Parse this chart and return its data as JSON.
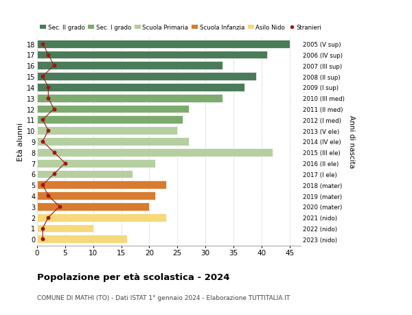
{
  "ages": [
    18,
    17,
    16,
    15,
    14,
    13,
    12,
    11,
    10,
    9,
    8,
    7,
    6,
    5,
    4,
    3,
    2,
    1,
    0
  ],
  "right_labels": [
    "2005 (V sup)",
    "2006 (IV sup)",
    "2007 (III sup)",
    "2008 (II sup)",
    "2009 (I sup)",
    "2010 (III med)",
    "2011 (II med)",
    "2012 (I med)",
    "2013 (V ele)",
    "2014 (IV ele)",
    "2015 (III ele)",
    "2016 (II ele)",
    "2017 (I ele)",
    "2018 (mater)",
    "2019 (mater)",
    "2020 (mater)",
    "2021 (nido)",
    "2022 (nido)",
    "2023 (nido)"
  ],
  "bar_values": [
    45,
    41,
    33,
    39,
    37,
    33,
    27,
    26,
    25,
    27,
    42,
    21,
    17,
    23,
    21,
    20,
    23,
    10,
    16
  ],
  "stranieri_values": [
    1,
    2,
    3,
    1,
    2,
    2,
    3,
    1,
    2,
    1,
    3,
    5,
    3,
    1,
    2,
    4,
    2,
    1,
    1
  ],
  "bar_colors": [
    "#4a7c59",
    "#4a7c59",
    "#4a7c59",
    "#4a7c59",
    "#4a7c59",
    "#7dab6e",
    "#7dab6e",
    "#7dab6e",
    "#b5cfa0",
    "#b5cfa0",
    "#b5cfa0",
    "#b5cfa0",
    "#b5cfa0",
    "#d97b2e",
    "#d97b2e",
    "#d97b2e",
    "#f5d97a",
    "#f5d97a",
    "#f5d97a"
  ],
  "legend_labels": [
    "Sec. II grado",
    "Sec. I grado",
    "Scuola Primaria",
    "Scuola Infanzia",
    "Asilo Nido",
    "Stranieri"
  ],
  "legend_colors": [
    "#4a7c59",
    "#7dab6e",
    "#b5cfa0",
    "#d97b2e",
    "#f5d97a",
    "#a31515"
  ],
  "xlabel_vals": [
    0,
    5,
    10,
    15,
    20,
    25,
    30,
    35,
    40,
    45
  ],
  "xlim": [
    0,
    47
  ],
  "ylabel_left": "Età alunni",
  "ylabel_right": "Anni di nascita",
  "title": "Popolazione per età scolastica - 2024",
  "subtitle": "COMUNE DI MATHI (TO) - Dati ISTAT 1° gennaio 2024 - Elaborazione TUTTITALIA.IT",
  "stranieri_color": "#a31515",
  "line_color": "#8b1a1a",
  "bar_height": 0.75,
  "background_color": "#ffffff"
}
